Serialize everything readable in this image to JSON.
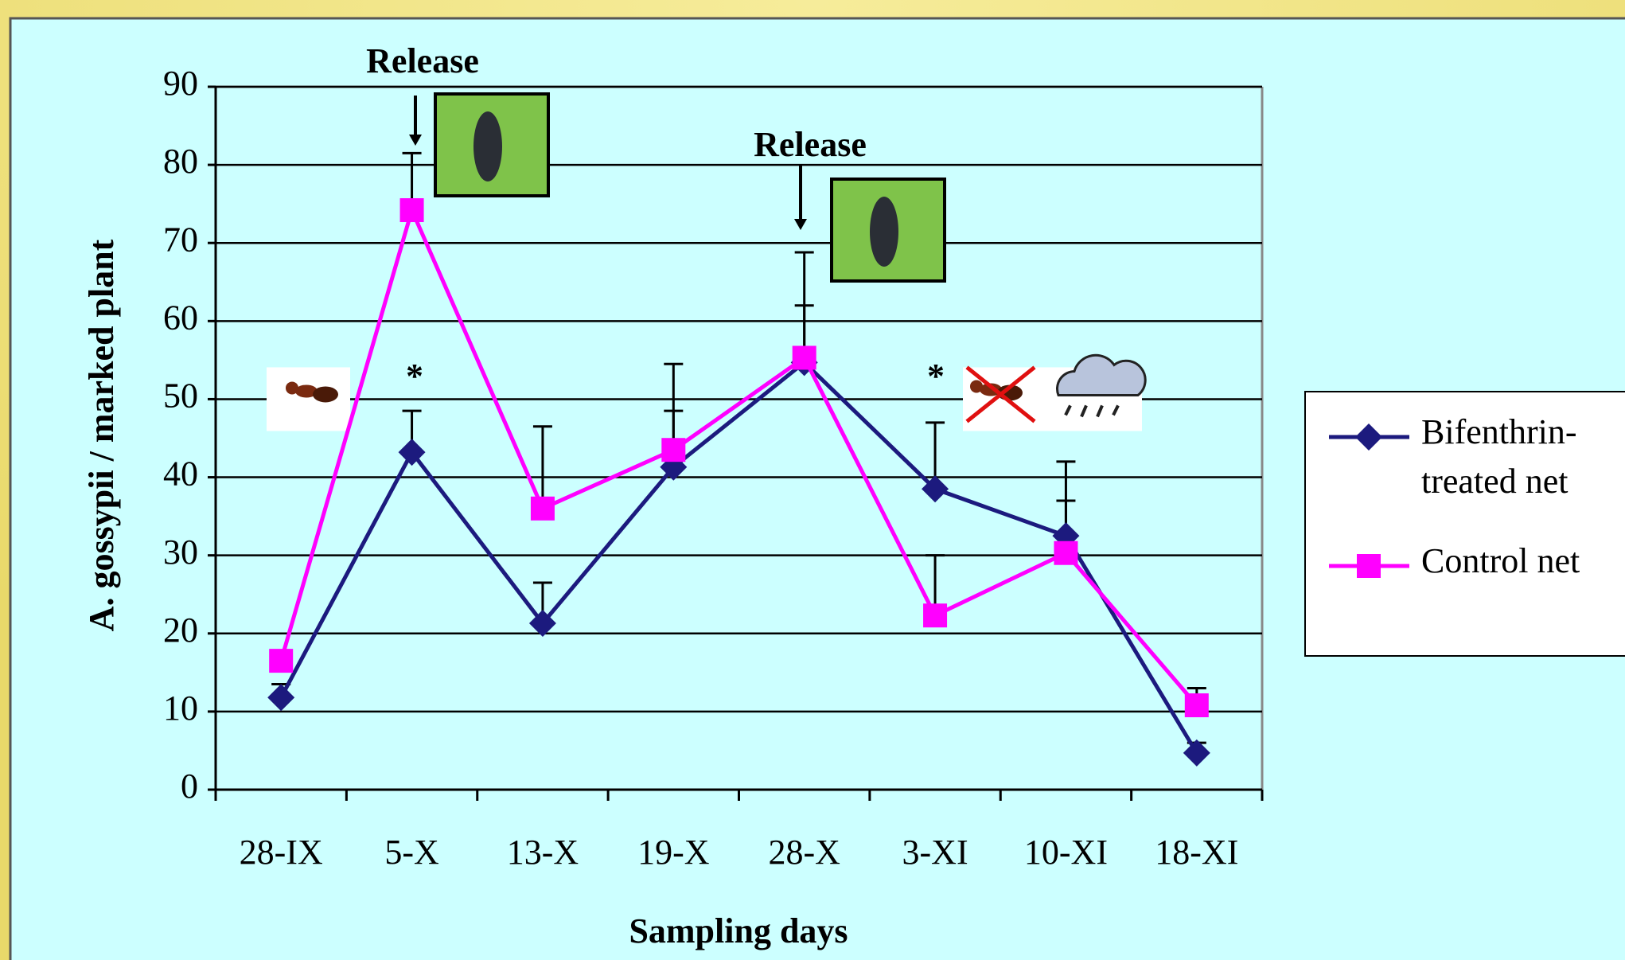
{
  "chart_data": {
    "type": "line",
    "y_label": "A. gossypii / marked plant",
    "x_label": "Sampling days",
    "categories": [
      "28-IX",
      "5-X",
      "13-X",
      "19-X",
      "28-X",
      "3-XI",
      "10-XI",
      "18-XI"
    ],
    "series": [
      {
        "name": "Bifenthrin-treated net",
        "color": "#1c1a7e",
        "marker": "diamond",
        "values": [
          11.8,
          43.2,
          21.3,
          41.3,
          54.7,
          38.5,
          32.5,
          4.7
        ],
        "errors": [
          1.7,
          5.3,
          5.2,
          7.2,
          7.3,
          8.5,
          4.5,
          1.3
        ]
      },
      {
        "name": "Control net",
        "color": "#ff00ff",
        "marker": "square",
        "values": [
          16.5,
          74.2,
          36,
          43.5,
          55.3,
          22.3,
          30.3,
          10.8
        ],
        "errors": [
          null,
          7.3,
          10.5,
          11,
          13.5,
          7.7,
          11.7,
          2.2
        ]
      }
    ],
    "annotations": [
      "Release",
      "Release",
      "*",
      "*"
    ],
    "ylim": [
      0,
      90
    ],
    "yticks": [
      0,
      10,
      20,
      30,
      40,
      50,
      60,
      70,
      80,
      90
    ],
    "grid": true
  }
}
